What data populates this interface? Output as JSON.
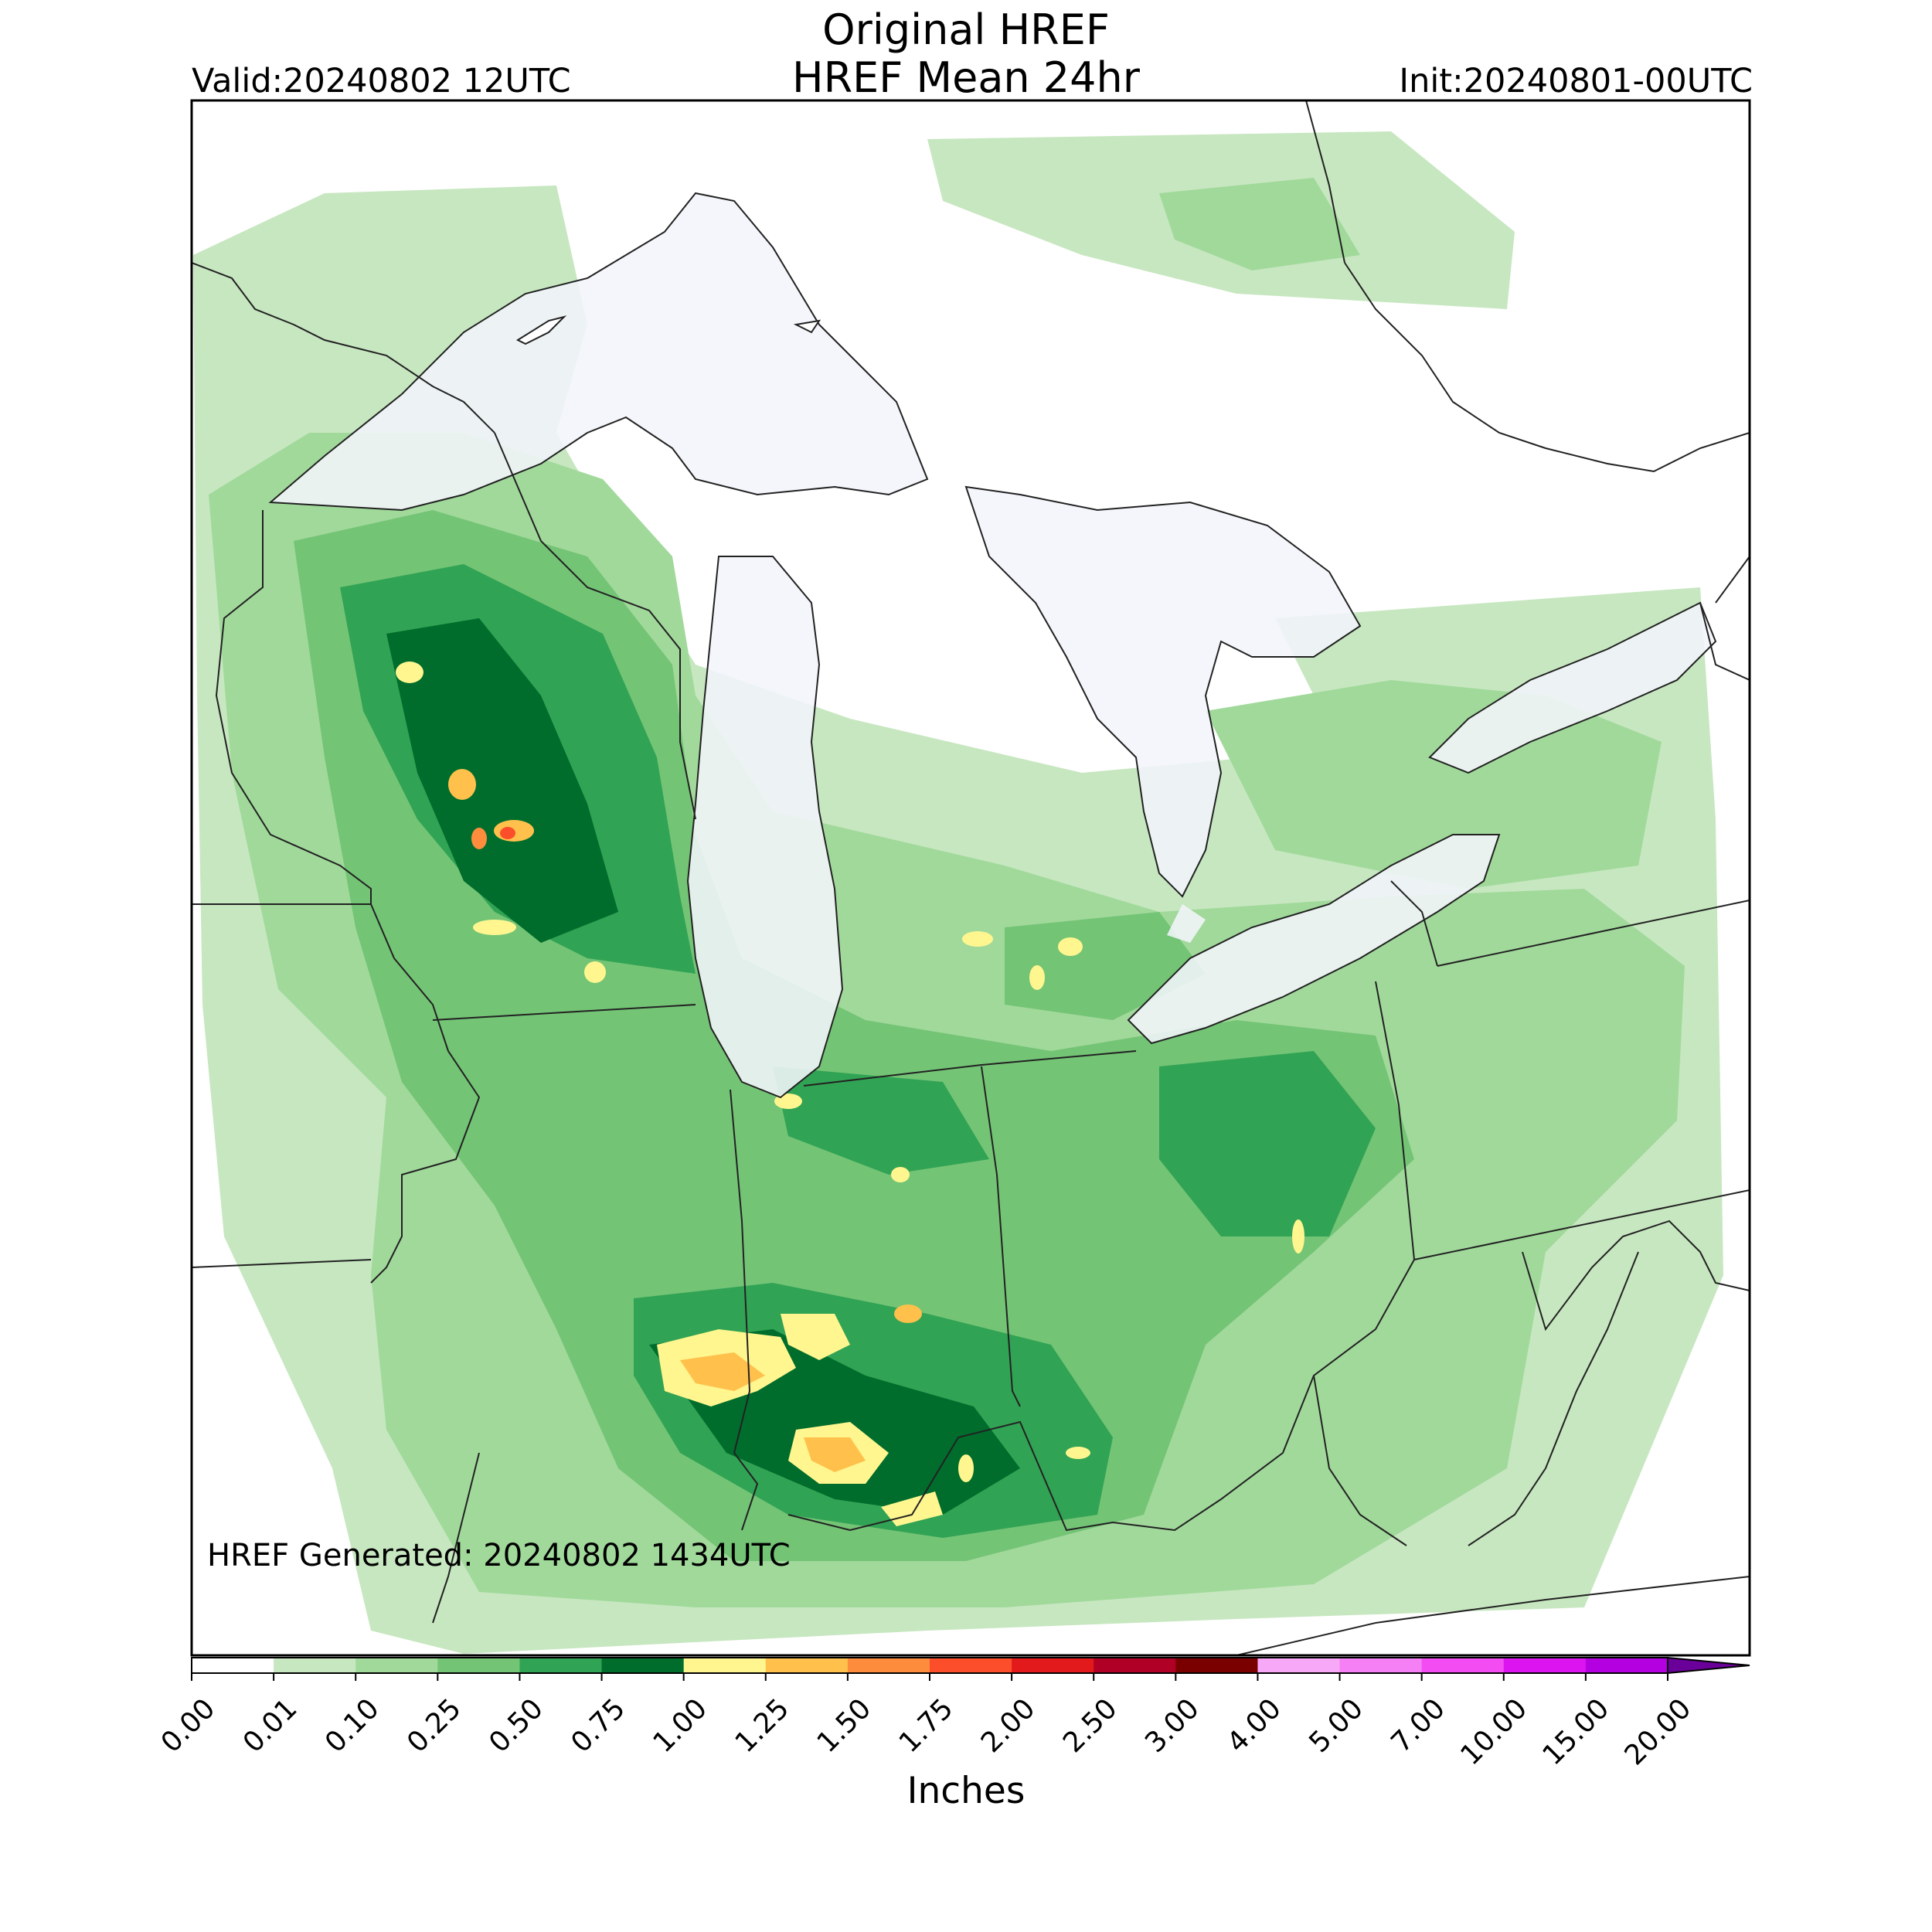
{
  "header": {
    "title_line1": "Original HREF",
    "title_line2": "HREF Mean 24hr",
    "valid": "Valid:20240802 12UTC",
    "init": "Init:20240801-00UTC"
  },
  "footer": {
    "generated": "HREF Generated: 20240802 1434UTC"
  },
  "colorbar": {
    "label": "Inches",
    "ticks": [
      "0.00",
      "0.01",
      "0.10",
      "0.25",
      "0.50",
      "0.75",
      "1.00",
      "1.25",
      "1.50",
      "1.75",
      "2.00",
      "2.50",
      "3.00",
      "4.00",
      "5.00",
      "7.00",
      "10.00",
      "15.00",
      "20.00"
    ],
    "colors": [
      "#ffffff",
      "#c7e7c0",
      "#a1d99b",
      "#74c476",
      "#31a354",
      "#006d2c",
      "#fff68f",
      "#ffc04c",
      "#fd8d3c",
      "#fc4e2a",
      "#e31a1c",
      "#b10026",
      "#7a0000",
      "#f7a8f7",
      "#f57ff5",
      "#f24cf2",
      "#dc14f0",
      "#b400e0",
      "#8b00cc"
    ],
    "extend_max_color": "#6a0099"
  },
  "map_colors": {
    "water": "#f2f5fb",
    "border": "#222222",
    "precip_light": "#c7e7c0",
    "precip_moderate": "#a1d99b",
    "precip_medium": "#74c476",
    "precip_heavy": "#31a354",
    "precip_very_heavy": "#006d2c",
    "precip_yellow": "#fff68f",
    "precip_orange": "#ffc04c",
    "precip_red": "#fc4e2a"
  }
}
